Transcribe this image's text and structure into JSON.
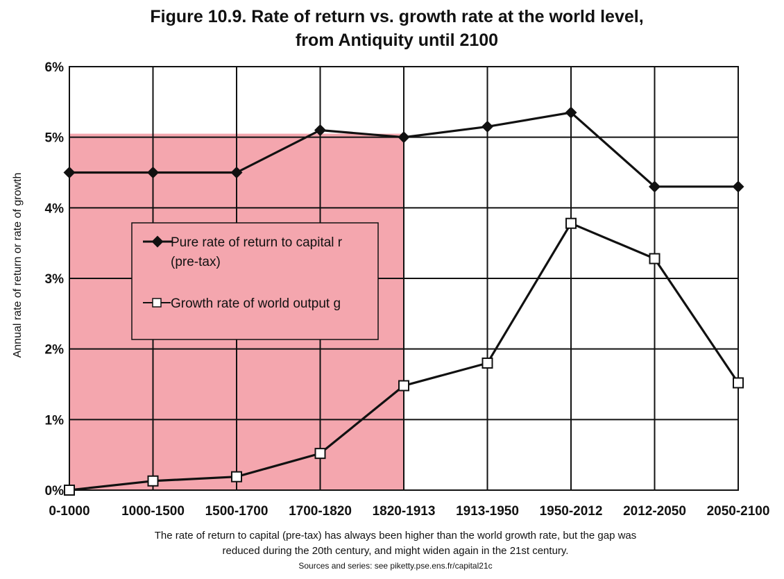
{
  "chart_data": {
    "type": "line",
    "title_line1": "Figure 10.9. Rate of return vs. growth rate at the world level,",
    "title_line2": "from Antiquity until 2100",
    "xlabel": "",
    "ylabel": "Annual rate of return or rate of growth",
    "ylim": [
      0,
      6
    ],
    "yticks": [
      0,
      1,
      2,
      3,
      4,
      5,
      6
    ],
    "ytick_labels": [
      "0%",
      "1%",
      "2%",
      "3%",
      "4%",
      "5%",
      "6%"
    ],
    "categories": [
      "0-1000",
      "1000-1500",
      "1500-1700",
      "1700-1820",
      "1820-1913",
      "1913-1950",
      "1950-2012",
      "2012-2050",
      "2050-2100"
    ],
    "grid": true,
    "series": [
      {
        "name": "Pure rate of return to capital r",
        "name_line2": "(pre-tax)",
        "marker": "filled-diamond",
        "values": [
          4.5,
          4.5,
          4.5,
          5.1,
          5.0,
          5.15,
          5.35,
          4.3,
          4.3
        ]
      },
      {
        "name": "Growth rate of world output g",
        "marker": "hollow-square",
        "values": [
          0.0,
          0.13,
          0.19,
          0.52,
          1.48,
          1.8,
          3.78,
          3.28,
          1.52
        ]
      }
    ],
    "highlight_region": {
      "from_category": "0-1000",
      "to_category": "1820-1913",
      "y_top": 5.05,
      "color": "#f4a6ae"
    },
    "legend_position": "middle-left",
    "caption_line1": "The rate of return to capital (pre-tax) has always been higher than the world growth rate, but the gap was",
    "caption_line2": "reduced during the 20th century, and might widen again in the 21st century.",
    "source": "Sources and series: see piketty.pse.ens.fr/capital21c"
  },
  "colors": {
    "line": "#111111",
    "grid": "#111111",
    "shade": "#f4a6ae",
    "legend_bg": "#f4a6ae",
    "background": "#ffffff"
  }
}
